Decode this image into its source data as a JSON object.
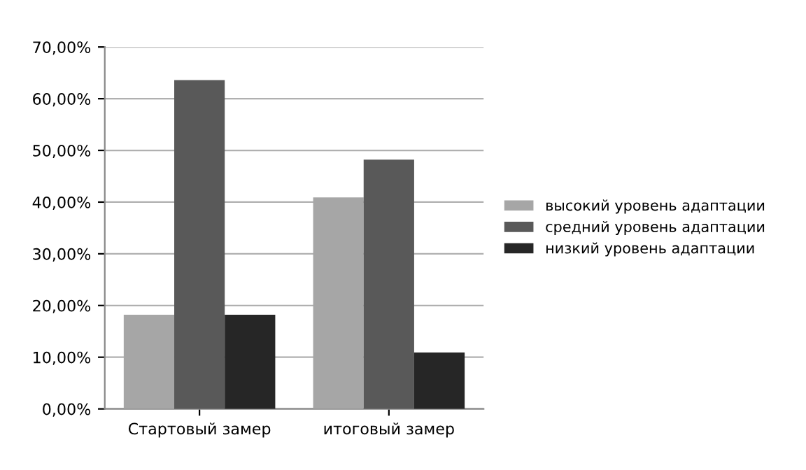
{
  "chart_data": {
    "type": "bar",
    "categories": [
      "Стартовый замер",
      "итоговый замер"
    ],
    "series": [
      {
        "name": "высокий уровень адаптации",
        "color": "#a6a6a6",
        "values": [
          18.2,
          40.9
        ]
      },
      {
        "name": "средний уровень адаптации",
        "color": "#595959",
        "values": [
          63.6,
          48.2
        ]
      },
      {
        "name": "низкий уровень адаптации",
        "color": "#262626",
        "values": [
          18.2,
          10.9
        ]
      }
    ],
    "ylim": [
      0,
      70
    ],
    "yticks": [
      {
        "value": 0,
        "label": "0,00%"
      },
      {
        "value": 10,
        "label": "10,00%"
      },
      {
        "value": 20,
        "label": "20,00%"
      },
      {
        "value": 30,
        "label": "30,00%"
      },
      {
        "value": 40,
        "label": "40,00%"
      },
      {
        "value": 50,
        "label": "50,00%"
      },
      {
        "value": 60,
        "label": "60,00%"
      },
      {
        "value": 70,
        "label": "70,00%"
      }
    ],
    "grid": "y",
    "legend": "right"
  }
}
